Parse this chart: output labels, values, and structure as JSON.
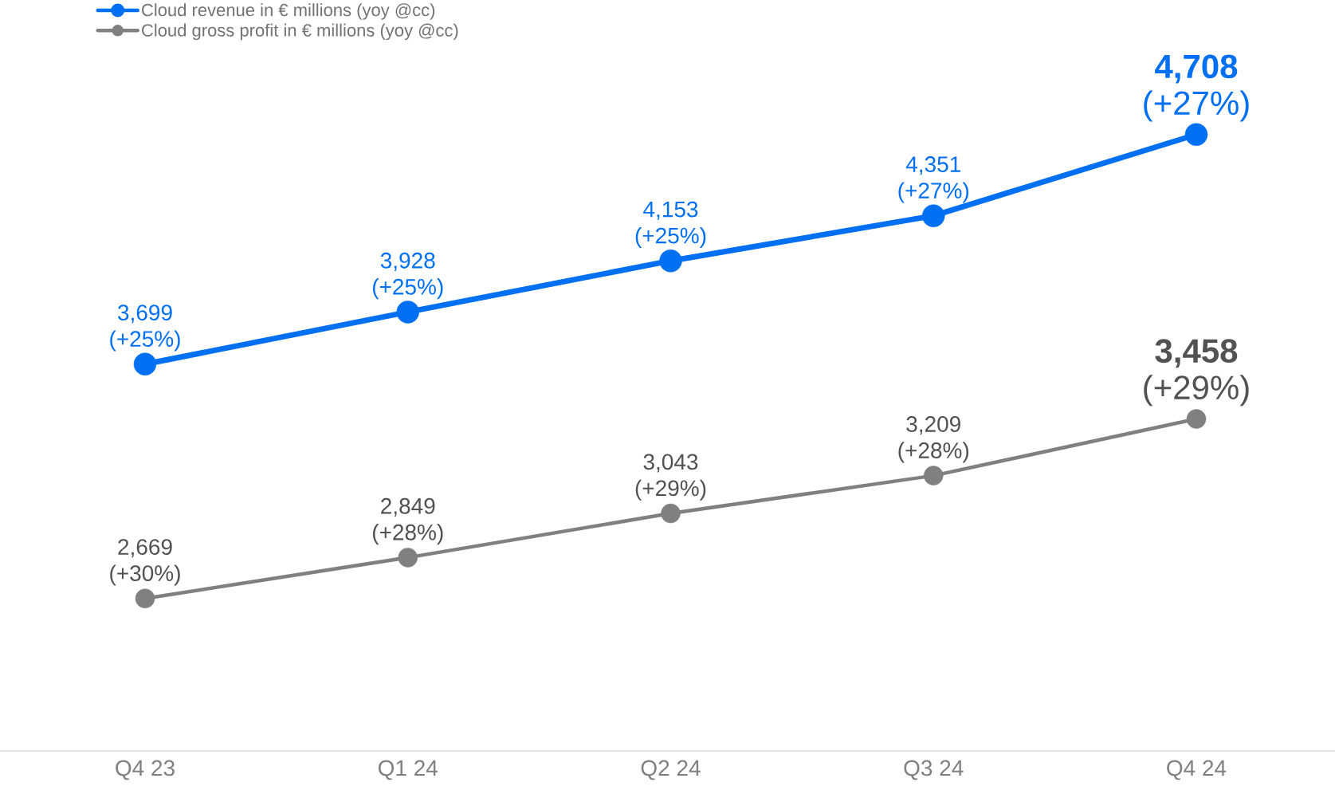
{
  "chart_data": {
    "type": "line",
    "categories": [
      "Q4 23",
      "Q1 24",
      "Q2 24",
      "Q3 24",
      "Q4 24"
    ],
    "series": [
      {
        "name": "Cloud revenue in € millions (yoy @cc)",
        "color": "#0070f2",
        "values": [
          3699,
          3928,
          4153,
          4351,
          4708
        ],
        "value_labels": [
          "3,699 (+25%)",
          "3,928 (+25%)",
          "4,153 (+25%)",
          "4,351 (+27%)",
          "**4,708** (+27%)"
        ]
      },
      {
        "name": "Cloud gross profit in € millions (yoy @cc)",
        "color": "#808080",
        "values": [
          2669,
          2849,
          3043,
          3209,
          3458
        ],
        "value_labels": [
          "2,669 (+30%)",
          "2,849 (+28%)",
          "3,043 (+29%)",
          "3,209 (+28%)",
          "**3,458** (+29%)"
        ]
      }
    ],
    "tick_labels": "x",
    "legend": "top left",
    "marker": "circle",
    "line_style": "solid",
    "grid": false
  }
}
